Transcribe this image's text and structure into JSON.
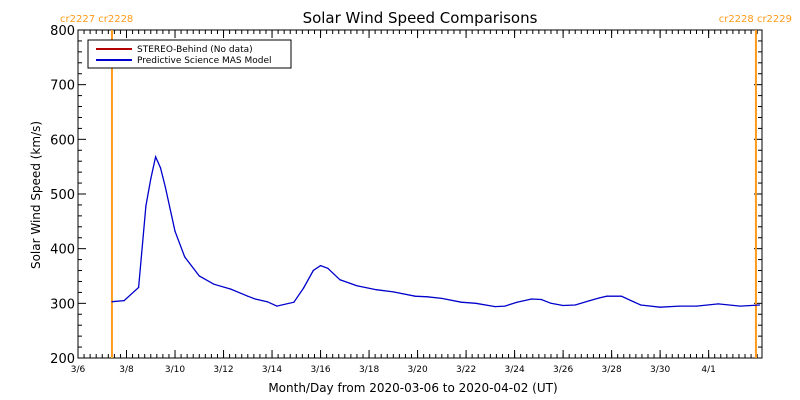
{
  "chart_data": {
    "type": "line",
    "title": "Solar Wind Speed Comparisons",
    "xlabel": "Month/Day from 2020-03-06 to 2020-04-02 (UT)",
    "ylabel": "Solar Wind Speed (km/s)",
    "ylim": [
      200,
      800
    ],
    "yticks": [
      200,
      300,
      400,
      500,
      600,
      700,
      800
    ],
    "xlim_days": [
      0,
      28.2
    ],
    "xticks": [
      {
        "day": 0,
        "label": "3/6"
      },
      {
        "day": 2,
        "label": "3/8"
      },
      {
        "day": 4,
        "label": "3/10"
      },
      {
        "day": 6,
        "label": "3/12"
      },
      {
        "day": 8,
        "label": "3/14"
      },
      {
        "day": 10,
        "label": "3/16"
      },
      {
        "day": 12,
        "label": "3/18"
      },
      {
        "day": 14,
        "label": "3/20"
      },
      {
        "day": 16,
        "label": "3/22"
      },
      {
        "day": 18,
        "label": "3/24"
      },
      {
        "day": 20,
        "label": "3/26"
      },
      {
        "day": 22,
        "label": "3/28"
      },
      {
        "day": 24,
        "label": "3/30"
      },
      {
        "day": 26,
        "label": "4/1"
      }
    ],
    "grid": false,
    "legend_position": "top-left",
    "series": [
      {
        "name": "STEREO-Behind (No data)",
        "color": "#b30000",
        "x": [],
        "y": []
      },
      {
        "name": "Predictive Science MAS Model",
        "color": "#0000cc",
        "x": [
          1.4,
          1.9,
          2.5,
          2.8,
          3.0,
          3.2,
          3.4,
          3.6,
          4.0,
          4.4,
          5.0,
          5.6,
          6.3,
          7.0,
          7.3,
          7.8,
          8.2,
          8.9,
          9.3,
          9.7,
          10.0,
          10.3,
          10.8,
          11.5,
          12.3,
          13.0,
          13.9,
          14.4,
          15.0,
          15.8,
          16.4,
          17.2,
          17.6,
          18.1,
          18.7,
          19.1,
          19.5,
          20.0,
          20.5,
          21.1,
          21.5,
          21.8,
          22.4,
          23.2,
          24.0,
          24.8,
          25.5,
          26.4,
          27.3,
          28.1
        ],
        "y": [
          303,
          305,
          329,
          478,
          528,
          568,
          548,
          513,
          432,
          385,
          350,
          335,
          326,
          313,
          308,
          303,
          295,
          302,
          328,
          360,
          369,
          364,
          343,
          332,
          325,
          321,
          313,
          312,
          309,
          302,
          300,
          294,
          295,
          302,
          308,
          307,
          300,
          296,
          297,
          305,
          310,
          313,
          313,
          297,
          293,
          295,
          295,
          299,
          295,
          297
        ]
      }
    ],
    "carrington_markers": [
      {
        "day": 1.4,
        "label": "cr2227 cr2228",
        "side": "left",
        "color": "#ff9a1a"
      },
      {
        "day": 27.95,
        "label": "cr2228 cr2229",
        "side": "right",
        "color": "#ff9a1a"
      }
    ]
  }
}
